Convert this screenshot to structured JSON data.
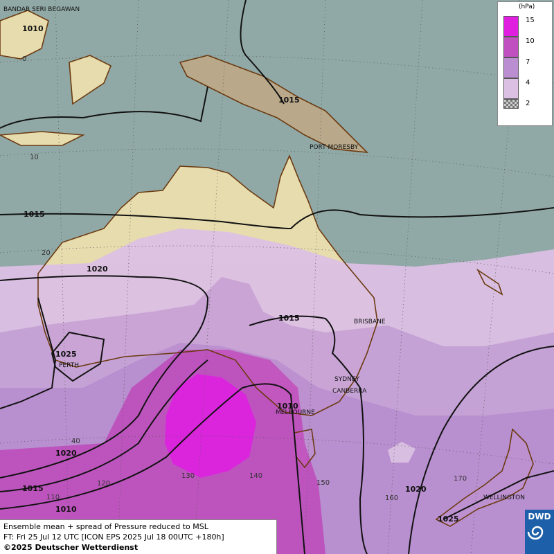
{
  "map": {
    "places": [
      "BANDAR SERI BEGAWAN",
      "PORT MORESBY",
      "BRISBANE",
      "PERTH",
      "SYDNEY",
      "CANBERRA",
      "MELBOURNE",
      "WELLINGTON"
    ],
    "isobar_labels": [
      1010,
      1015,
      1015,
      1020,
      1015,
      1025,
      1010,
      1020,
      1015,
      1010,
      1020,
      1025
    ],
    "grid_labels": [
      0,
      10,
      20,
      40,
      110,
      120,
      130,
      140,
      150,
      160,
      170
    ],
    "legend": {
      "unit": "(hPa)",
      "levels": [
        {
          "value": 15,
          "color": "#e01ee0"
        },
        {
          "value": 10,
          "color": "#c050c0"
        },
        {
          "value": 7,
          "color": "#bb8ed2"
        },
        {
          "value": 4,
          "color": "#dcc0e4"
        },
        {
          "value": 2,
          "color": "#bbbbbb"
        }
      ]
    }
  },
  "footer": {
    "line1": "Ensemble mean + spread of Pressure reduced to MSL",
    "line2": "FT: Fri 25 Jul 12 UTC [ICON EPS 2025 Jul 18 00UTC +180h]",
    "line3": "©2025 Deutscher Wetterdienst",
    "logo": "DWD"
  }
}
